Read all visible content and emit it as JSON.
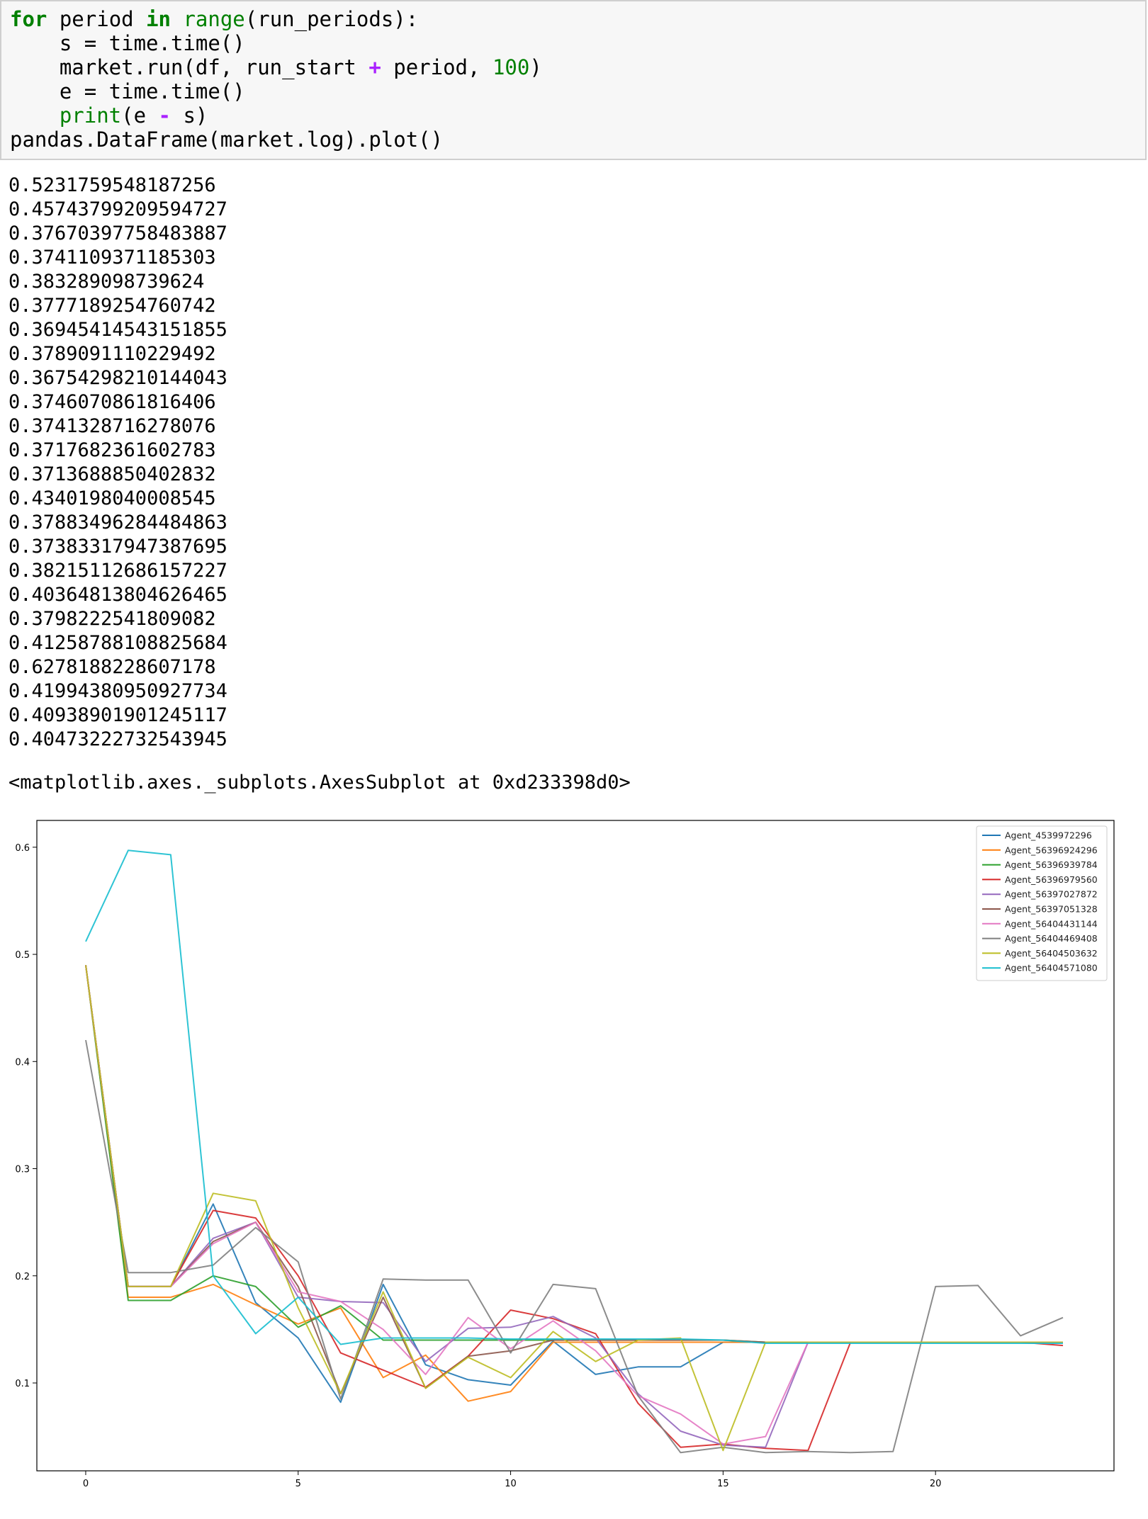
{
  "code_cell": {
    "lines": [
      [
        {
          "t": "for",
          "c": "kw"
        },
        {
          "t": " period ",
          "c": ""
        },
        {
          "t": "in",
          "c": "kw"
        },
        {
          "t": " ",
          "c": ""
        },
        {
          "t": "range",
          "c": "bi"
        },
        {
          "t": "(run_periods):",
          "c": ""
        }
      ],
      [
        {
          "t": "    s = time.time()",
          "c": ""
        }
      ],
      [
        {
          "t": "    market.run(df, run_start ",
          "c": ""
        },
        {
          "t": "+",
          "c": "op"
        },
        {
          "t": " period, ",
          "c": ""
        },
        {
          "t": "100",
          "c": "num"
        },
        {
          "t": ")",
          "c": ""
        }
      ],
      [
        {
          "t": "    e = time.time()",
          "c": ""
        }
      ],
      [
        {
          "t": "    ",
          "c": ""
        },
        {
          "t": "print",
          "c": "bi"
        },
        {
          "t": "(e ",
          "c": ""
        },
        {
          "t": "-",
          "c": "op"
        },
        {
          "t": " s)",
          "c": ""
        }
      ],
      [
        {
          "t": "pandas.DataFrame(market.log).plot()",
          "c": ""
        }
      ]
    ]
  },
  "stdout_lines": [
    "0.5231759548187256",
    "0.45743799209594727",
    "0.37670397758483887",
    "0.3741109371185303",
    "0.383289098739624",
    "0.3777189254760742",
    "0.36945414543151855",
    "0.3789091110229492",
    "0.36754298210144043",
    "0.3746070861816406",
    "0.3741328716278076",
    "0.3717682361602783",
    "0.3713688850402832",
    "0.4340198040008545",
    "0.37883496284484863",
    "0.37383317947387695",
    "0.38215112686157227",
    "0.40364813804626465",
    "0.3798222541809082",
    "0.41258788108825684",
    "0.6278188228607178",
    "0.41994380950927734",
    "0.40938901901245117",
    "0.40473222732543945"
  ],
  "result_repr": "<matplotlib.axes._subplots.AxesSubplot at 0xd233398d0>",
  "chart_data": {
    "type": "line",
    "title": "",
    "xlabel": "",
    "ylabel": "",
    "xlim": [
      -1.15,
      24.2
    ],
    "ylim": [
      0.018,
      0.625
    ],
    "xticks": [
      0,
      5,
      10,
      15,
      20
    ],
    "yticks": [
      0.1,
      0.2,
      0.3,
      0.4,
      0.5,
      0.6
    ],
    "grid": false,
    "legend_position": "top-right",
    "series": [
      {
        "name": "Agent_4539972296",
        "color": "#1f77b4",
        "values": [
          0.49,
          0.19,
          0.19,
          0.267,
          0.175,
          0.142,
          0.082,
          0.192,
          0.117,
          0.103,
          0.098,
          0.139,
          0.108,
          0.115,
          0.115,
          0.138,
          0.138,
          0.138,
          0.138,
          0.138,
          0.138,
          0.138,
          0.138,
          0.138
        ]
      },
      {
        "name": "Agent_56396924296",
        "color": "#ff7f0e",
        "values": [
          0.49,
          0.18,
          0.18,
          0.192,
          0.173,
          0.155,
          0.17,
          0.105,
          0.126,
          0.083,
          0.092,
          0.138,
          0.138,
          0.138,
          0.138,
          0.138,
          0.138,
          0.138,
          0.138,
          0.138,
          0.138,
          0.138,
          0.138,
          0.138
        ]
      },
      {
        "name": "Agent_56396939784",
        "color": "#2ca02c",
        "values": [
          0.49,
          0.177,
          0.177,
          0.2,
          0.19,
          0.152,
          0.172,
          0.14,
          0.14,
          0.14,
          0.14,
          0.14,
          0.14,
          0.14,
          0.14,
          0.14,
          0.138,
          0.138,
          0.138,
          0.138,
          0.138,
          0.138,
          0.138,
          0.138
        ]
      },
      {
        "name": "Agent_56396979560",
        "color": "#d62728",
        "values": [
          0.49,
          0.19,
          0.19,
          0.261,
          0.254,
          0.2,
          0.128,
          0.112,
          0.096,
          0.125,
          0.168,
          0.16,
          0.146,
          0.081,
          0.04,
          0.043,
          0.039,
          0.037,
          0.138,
          0.138,
          0.138,
          0.138,
          0.138,
          0.135
        ]
      },
      {
        "name": "Agent_56397027872",
        "color": "#9467bd",
        "values": [
          0.49,
          0.19,
          0.19,
          0.235,
          0.25,
          0.18,
          0.176,
          0.175,
          0.12,
          0.151,
          0.152,
          0.162,
          0.142,
          0.09,
          0.055,
          0.042,
          0.04,
          0.138,
          0.138,
          0.138,
          0.138,
          0.138,
          0.138,
          0.138
        ]
      },
      {
        "name": "Agent_56397051328",
        "color": "#8c564b",
        "values": [
          0.49,
          0.19,
          0.19,
          0.232,
          0.25,
          0.19,
          0.09,
          0.18,
          0.095,
          0.125,
          0.13,
          0.14,
          0.14,
          0.14,
          0.14,
          0.14,
          0.138,
          0.138,
          0.138,
          0.138,
          0.138,
          0.138,
          0.138,
          0.138
        ]
      },
      {
        "name": "Agent_56404431144",
        "color": "#e377c2",
        "values": [
          0.49,
          0.19,
          0.19,
          0.23,
          0.25,
          0.185,
          0.176,
          0.15,
          0.108,
          0.161,
          0.132,
          0.158,
          0.13,
          0.088,
          0.071,
          0.043,
          0.05,
          0.138,
          0.138,
          0.138,
          0.138,
          0.138,
          0.138,
          0.138
        ]
      },
      {
        "name": "Agent_56404469408",
        "color": "#7f7f7f",
        "values": [
          0.42,
          0.203,
          0.203,
          0.21,
          0.245,
          0.213,
          0.085,
          0.197,
          0.196,
          0.196,
          0.128,
          0.192,
          0.188,
          0.088,
          0.035,
          0.04,
          0.035,
          0.036,
          0.035,
          0.036,
          0.19,
          0.191,
          0.144,
          0.161
        ]
      },
      {
        "name": "Agent_56404503632",
        "color": "#bcbd22",
        "values": [
          0.49,
          0.19,
          0.19,
          0.277,
          0.27,
          0.17,
          0.09,
          0.185,
          0.095,
          0.124,
          0.105,
          0.148,
          0.12,
          0.14,
          0.142,
          0.037,
          0.138,
          0.138,
          0.138,
          0.138,
          0.138,
          0.138,
          0.138,
          0.138
        ]
      },
      {
        "name": "Agent_56404571080",
        "color": "#17becf",
        "values": [
          0.512,
          0.597,
          0.593,
          0.2,
          0.146,
          0.18,
          0.136,
          0.142,
          0.142,
          0.142,
          0.141,
          0.141,
          0.141,
          0.141,
          0.141,
          0.14,
          0.137,
          0.137,
          0.137,
          0.137,
          0.137,
          0.137,
          0.137,
          0.137
        ]
      }
    ]
  }
}
